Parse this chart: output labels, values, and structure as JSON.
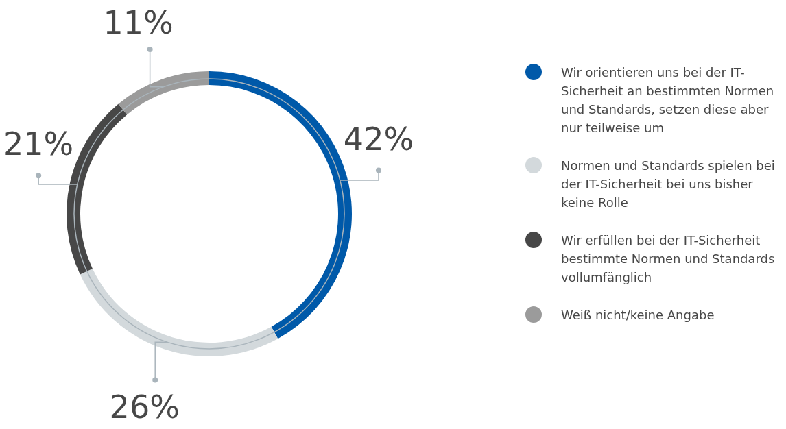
{
  "chart_data": {
    "type": "donut",
    "categories": [
      "Wir orientieren uns bei der IT-Sicherheit an bestimmten Normen und Standards, setzen diese aber nur teilweise um",
      "Normen und Standards spielen bei der IT-Sicherheit bei uns bisher keine Rolle",
      "Wir erfüllen bei der IT-Sicherheit bestimmte Normen und Standards vollumfänglich",
      "Weiß nicht/keine Angabe"
    ],
    "values": [
      42,
      26,
      21,
      11
    ],
    "colors": [
      "#0059a9",
      "#d3d9dc",
      "#474747",
      "#9b9b9b"
    ],
    "value_labels": [
      "42%",
      "26%",
      "21%",
      "11%"
    ],
    "legend": "right"
  }
}
